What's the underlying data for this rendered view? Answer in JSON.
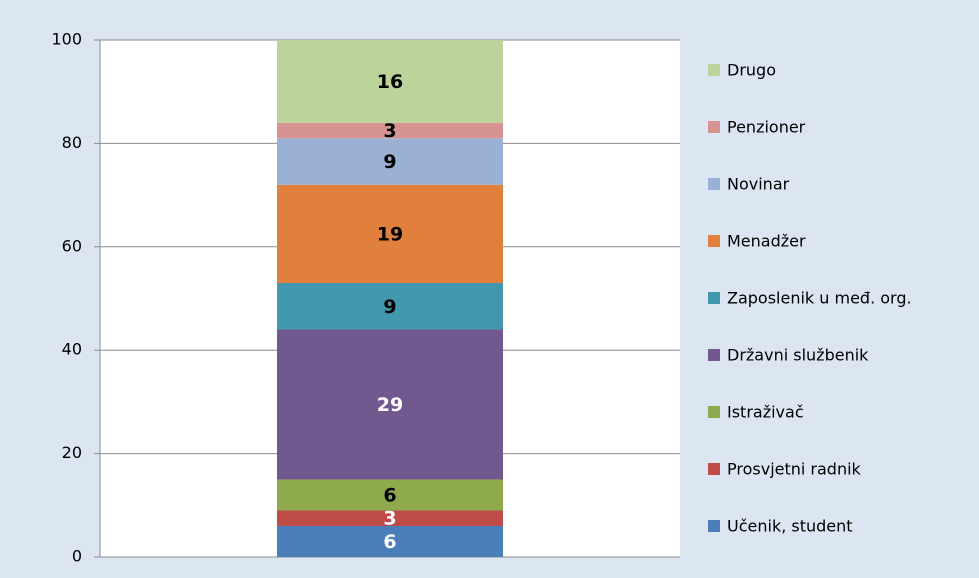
{
  "chart_data": {
    "type": "stacked_bar",
    "categories": [
      null
    ],
    "series": [
      {
        "name": "Učenik, student",
        "color": "#4a7ebb",
        "label_color": "#ffffff",
        "values": [
          6
        ]
      },
      {
        "name": "Prosvjetni radnik",
        "color": "#be4b48",
        "label_color": "#ffffff",
        "values": [
          3
        ]
      },
      {
        "name": "Istraživač",
        "color": "#8eaa4c",
        "label_color": "#000000",
        "values": [
          6
        ]
      },
      {
        "name": "Državni službenik",
        "color": "#71588f",
        "label_color": "#ffffff",
        "values": [
          29
        ]
      },
      {
        "name": "Zaposlenik u međ. org.",
        "color": "#4198af",
        "label_color": "#000000",
        "values": [
          9
        ]
      },
      {
        "name": "Menadžer",
        "color": "#e0803c",
        "label_color": "#000000",
        "values": [
          19
        ]
      },
      {
        "name": "Novinar",
        "color": "#98b1d5",
        "label_color": "#000000",
        "values": [
          9
        ]
      },
      {
        "name": "Penzioner",
        "color": "#d69391",
        "label_color": "#000000",
        "values": [
          3
        ]
      },
      {
        "name": "Drugo",
        "color": "#bcd39c",
        "label_color": "#000000",
        "values": [
          16
        ]
      }
    ],
    "ylim": [
      0,
      100
    ],
    "yticks": [
      0,
      20,
      40,
      60,
      80,
      100
    ],
    "grid": true,
    "legend": "right"
  }
}
